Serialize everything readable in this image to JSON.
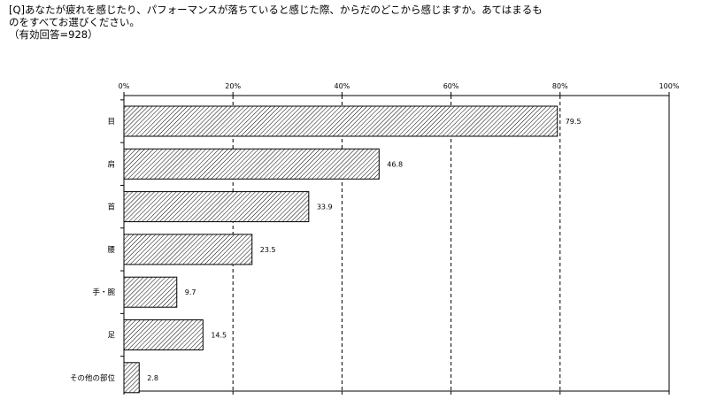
{
  "question": {
    "line1": "[Q]あなたが疲れを感じたり、パフォーマンスが落ちていると感じた際、からだのどこから感じますか。あてはまるも",
    "line2": "のをすべてお選びください。",
    "line3": "（有効回答=928）"
  },
  "chart_data": {
    "type": "bar",
    "orientation": "horizontal",
    "title": "",
    "xlabel": "",
    "ylabel": "",
    "categories": [
      "目",
      "肩",
      "首",
      "腰",
      "手・腕",
      "足",
      "その他の部位"
    ],
    "values": [
      79.5,
      46.8,
      33.9,
      23.5,
      9.7,
      14.5,
      2.8
    ],
    "value_labels": [
      "79.5",
      "46.8",
      "33.9",
      "23.5",
      "9.7",
      "14.5",
      "2.8"
    ],
    "xlim": [
      0,
      100
    ],
    "ticks": [
      0,
      20,
      40,
      60,
      80,
      100
    ],
    "tick_labels": [
      "0%",
      "20%",
      "40%",
      "60%",
      "80%",
      "100%"
    ],
    "grid": "dashed vertical",
    "bar_fill": "diagonal hatch",
    "colors": {
      "bar_stroke": "#000000",
      "hatch": "#000000",
      "grid": "#000000",
      "background": "#ffffff"
    }
  }
}
